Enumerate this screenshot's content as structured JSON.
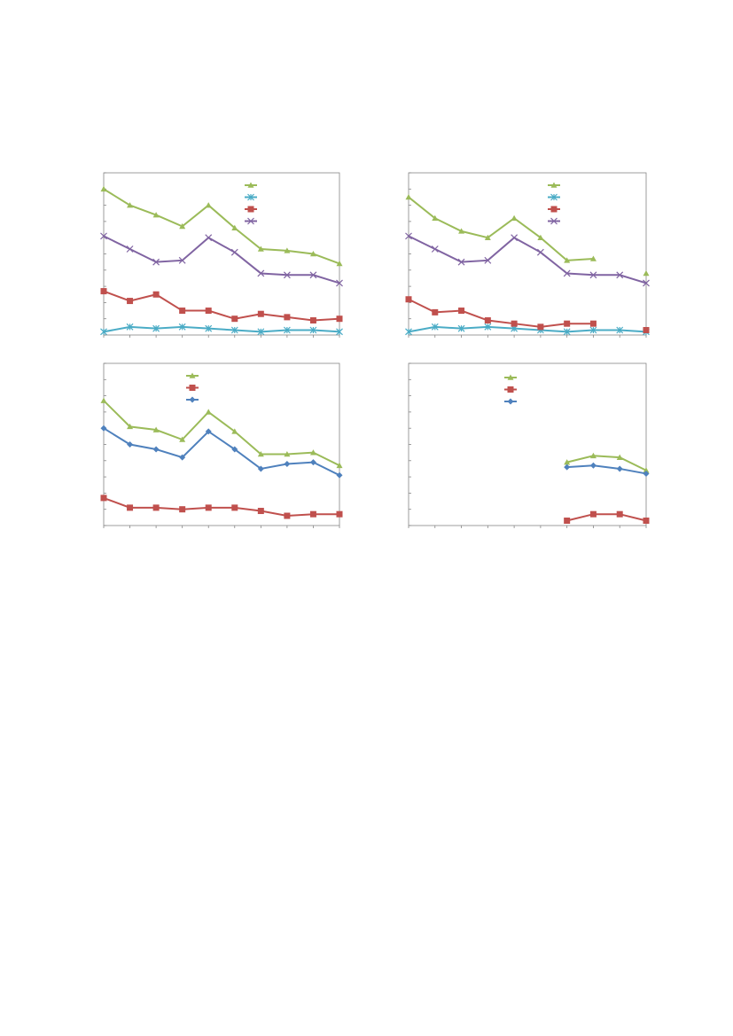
{
  "chart_data": [
    {
      "type": "line",
      "x": [
        0,
        1,
        2,
        3,
        4,
        5,
        6,
        7,
        8,
        9
      ],
      "xlim": [
        0,
        9
      ],
      "xticks": [
        0,
        1,
        2,
        3,
        4,
        5,
        6,
        7,
        8,
        9
      ],
      "ylim": [
        0,
        10
      ],
      "yticks": [
        0,
        1,
        2,
        3,
        4,
        5,
        6,
        7,
        8,
        9,
        10
      ],
      "series": [
        {
          "color": "#9bbb59",
          "marker": "triangle",
          "values": [
            9.0,
            8.0,
            7.4,
            6.7,
            8.0,
            6.6,
            5.3,
            5.2,
            5.0,
            4.4
          ]
        },
        {
          "color": "#4bacc6",
          "marker": "star",
          "values": [
            0.2,
            0.5,
            0.4,
            0.5,
            0.4,
            0.3,
            0.2,
            0.3,
            0.3,
            0.2
          ]
        },
        {
          "color": "#c0504d",
          "marker": "square",
          "values": [
            2.7,
            2.1,
            2.5,
            1.5,
            1.5,
            1.0,
            1.3,
            1.1,
            0.9,
            1.0
          ]
        },
        {
          "color": "#8064a2",
          "marker": "x",
          "values": [
            6.1,
            5.3,
            4.5,
            4.6,
            6.0,
            5.1,
            3.8,
            3.7,
            3.7,
            3.2
          ]
        }
      ]
    },
    {
      "type": "line",
      "x": [
        0,
        1,
        2,
        3,
        4,
        5,
        6,
        7,
        8,
        9
      ],
      "xlim": [
        0,
        9
      ],
      "xticks": [
        0,
        1,
        2,
        3,
        4,
        5,
        6,
        7,
        8,
        9
      ],
      "ylim": [
        0,
        10
      ],
      "yticks": [
        0,
        1,
        2,
        3,
        4,
        5,
        6,
        7,
        8,
        9,
        10
      ],
      "series": [
        {
          "color": "#9bbb59",
          "marker": "triangle",
          "values": [
            8.5,
            7.2,
            6.4,
            6.0,
            7.2,
            6.0,
            4.6,
            4.7,
            null,
            3.8
          ]
        },
        {
          "color": "#4bacc6",
          "marker": "star",
          "values": [
            0.2,
            0.5,
            0.4,
            0.5,
            0.4,
            0.3,
            0.2,
            0.3,
            0.3,
            0.2
          ]
        },
        {
          "color": "#c0504d",
          "marker": "square",
          "values": [
            2.2,
            1.4,
            1.5,
            0.9,
            0.7,
            0.5,
            0.7,
            0.7,
            null,
            0.3
          ]
        },
        {
          "color": "#8064a2",
          "marker": "x",
          "values": [
            6.1,
            5.3,
            4.5,
            4.6,
            6.0,
            5.1,
            3.8,
            3.7,
            3.7,
            3.2
          ]
        }
      ]
    },
    {
      "type": "line",
      "x": [
        0,
        1,
        2,
        3,
        4,
        5,
        6,
        7,
        8,
        9
      ],
      "xlim": [
        0,
        9
      ],
      "xticks": [
        0,
        1,
        2,
        3,
        4,
        5,
        6,
        7,
        8,
        9
      ],
      "ylim": [
        0,
        10
      ],
      "yticks": [
        0,
        1,
        2,
        3,
        4,
        5,
        6,
        7,
        8,
        9,
        10
      ],
      "series": [
        {
          "color": "#9bbb59",
          "marker": "triangle",
          "values": [
            7.7,
            6.1,
            5.9,
            5.3,
            7.0,
            5.8,
            4.4,
            4.4,
            4.5,
            3.7
          ]
        },
        {
          "color": "#c0504d",
          "marker": "square",
          "values": [
            1.7,
            1.1,
            1.1,
            1.0,
            1.1,
            1.1,
            0.9,
            0.6,
            0.7,
            0.7
          ]
        },
        {
          "color": "#4f81bd",
          "marker": "diamond",
          "values": [
            6.0,
            5.0,
            4.7,
            4.2,
            5.8,
            4.7,
            3.5,
            3.8,
            3.9,
            3.1
          ]
        }
      ]
    },
    {
      "type": "line",
      "x": [
        0,
        1,
        2,
        3,
        4,
        5,
        6,
        7,
        8,
        9
      ],
      "xlim": [
        0,
        9
      ],
      "xticks": [
        0,
        1,
        2,
        3,
        4,
        5,
        6,
        7,
        8,
        9
      ],
      "ylim": [
        0,
        10
      ],
      "yticks": [
        0,
        1,
        2,
        3,
        4,
        5,
        6,
        7,
        8,
        9,
        10
      ],
      "series": [
        {
          "color": "#9bbb59",
          "marker": "triangle",
          "values": [
            null,
            null,
            null,
            null,
            null,
            null,
            3.9,
            4.3,
            4.2,
            3.4
          ]
        },
        {
          "color": "#c0504d",
          "marker": "square",
          "values": [
            null,
            null,
            null,
            null,
            null,
            null,
            0.3,
            0.7,
            0.7,
            0.3
          ]
        },
        {
          "color": "#4f81bd",
          "marker": "diamond",
          "values": [
            null,
            null,
            null,
            null,
            null,
            null,
            3.6,
            3.7,
            3.5,
            3.2
          ]
        }
      ]
    }
  ]
}
